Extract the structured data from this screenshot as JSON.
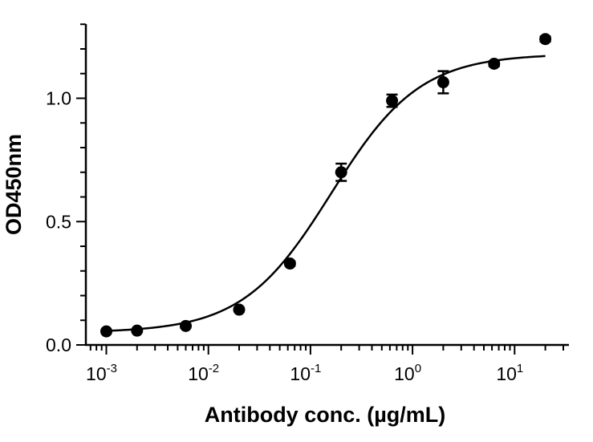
{
  "chart_data": {
    "type": "scatter",
    "title": "",
    "xlabel": "Antibody conc. (µg/mL)",
    "ylabel": "OD450nm",
    "x_scale": "log",
    "xlim": [
      0.0006,
      40
    ],
    "ylim": [
      0,
      1.3
    ],
    "x_ticks": [
      {
        "value": 0.001,
        "base": "10",
        "exp": "-3"
      },
      {
        "value": 0.01,
        "base": "10",
        "exp": "-2"
      },
      {
        "value": 0.1,
        "base": "10",
        "exp": "-1"
      },
      {
        "value": 1,
        "base": "10",
        "exp": "0"
      },
      {
        "value": 10,
        "base": "10",
        "exp": "1"
      }
    ],
    "y_ticks": [
      {
        "value": 0.0,
        "label": "0.0"
      },
      {
        "value": 0.5,
        "label": "0.5"
      },
      {
        "value": 1.0,
        "label": "1.0"
      }
    ],
    "grid": false,
    "legend": "none",
    "marker_color": "#000000",
    "points": [
      {
        "x": 0.001,
        "y": 0.055,
        "err": 0.005
      },
      {
        "x": 0.002,
        "y": 0.058,
        "err": 0.005
      },
      {
        "x": 0.006,
        "y": 0.077,
        "err": 0.006
      },
      {
        "x": 0.02,
        "y": 0.143,
        "err": 0.007
      },
      {
        "x": 0.063,
        "y": 0.33,
        "err": 0.008
      },
      {
        "x": 0.2,
        "y": 0.7,
        "err": 0.035
      },
      {
        "x": 0.63,
        "y": 0.99,
        "err": 0.025
      },
      {
        "x": 2,
        "y": 1.065,
        "err": 0.045
      },
      {
        "x": 6.3,
        "y": 1.14,
        "err": 0.01
      },
      {
        "x": 20,
        "y": 1.24,
        "err": 0.01
      }
    ],
    "fit": {
      "model": "4PL",
      "bottom": 0.05,
      "top": 1.18,
      "ec50": 0.16,
      "hill": 1.0,
      "x_range": [
        0.001,
        20
      ]
    }
  }
}
